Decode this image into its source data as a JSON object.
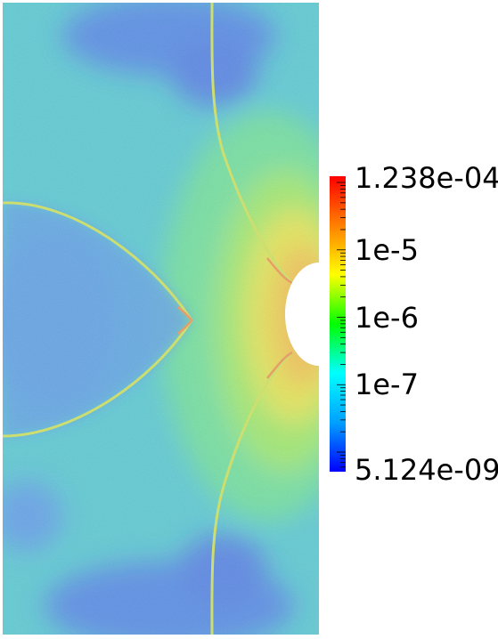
{
  "colorbar": {
    "scale": "log",
    "max_label": "1.238e-04",
    "min_label": "5.124e-09",
    "max_value": 0.0001238,
    "min_value": 5.124e-09,
    "tick_labels": [
      {
        "value": 1e-05,
        "text": "1e-5"
      },
      {
        "value": 1e-06,
        "text": "1e-6"
      },
      {
        "value": 1e-07,
        "text": "1e-7"
      }
    ],
    "colormap": [
      "#0000ff",
      "#00a0ff",
      "#00ffff",
      "#00ff00",
      "#ffff00",
      "#ff8000",
      "#ff0000"
    ]
  }
}
